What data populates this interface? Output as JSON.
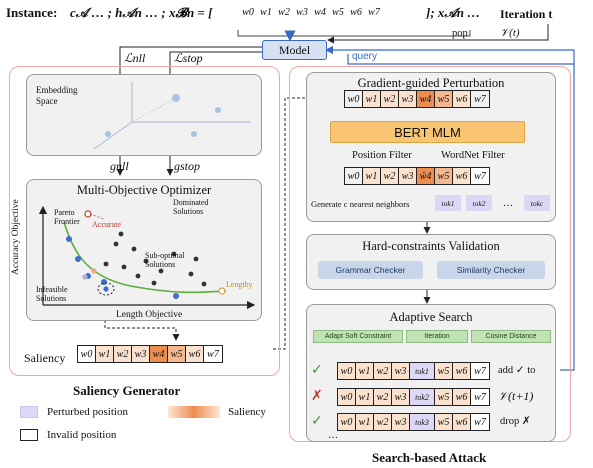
{
  "header": {
    "instance_label": "Instance:",
    "instance_formula": "c𝒜 … ; h𝒜n … ; x𝓑n = [",
    "instance_suffix": "]; x𝒜n …",
    "iteration_label": "Iteration t",
    "pop_label": "pop",
    "v_label": "𝒱(t)",
    "query_label": "query"
  },
  "model": {
    "label": "Model"
  },
  "losses": {
    "nll": "ℒnll",
    "stop": "ℒstop",
    "g_nll": "gnll",
    "g_stop": "gstop"
  },
  "embedding": {
    "label_line1": "Embedding",
    "label_line2": "Space"
  },
  "optimizer": {
    "title": "Multi-Objective Optimizer",
    "y_axis": "Accuracy Objective",
    "x_axis": "Length Objective",
    "pareto_line1": "Pareto",
    "pareto_line2": "Frontier",
    "accurate": "Accurate",
    "dominated_line1": "Dominated",
    "dominated_line2": "Solutions",
    "suboptimal_line1": "Sub-optimal",
    "suboptimal_line2": "Solutions",
    "infeasible_line1": "Infeasible",
    "infeasible_line2": "Solutions",
    "lengthy": "Lengthy"
  },
  "saliency": {
    "label": "Saliency"
  },
  "saliency_generator_title": "Saliency Generator",
  "perturbation": {
    "title": "Gradient-guided Perturbation",
    "bert": "BERT MLM",
    "position_filter": "Position Filter",
    "wordnet_filter": "WordNet Filter",
    "neighbors": "Generate c nearest neighbors",
    "tok1": "tok1",
    "tok2": "tok2",
    "tokc": "tokc",
    "dots": "…"
  },
  "validation": {
    "title": "Hard-constraints Validation",
    "grammar": "Grammar Checker",
    "similarity": "Similarity Checker"
  },
  "adaptive": {
    "title": "Adaptive Search",
    "tag1": "Adapt Soft Constraint",
    "tag2": "Iteration",
    "tag3": "Cosine Distance",
    "row1_action": "add ✓ to",
    "row2_action": "𝒱(t+1)",
    "row3_action": "drop ✗",
    "row1_tok": "tok1",
    "row2_tok": "tok2",
    "row3_tok": "tok3",
    "ellipsis": "…"
  },
  "search_attack_title": "Search-based Attack",
  "legend": {
    "perturbed": "Perturbed position",
    "saliency": "Saliency",
    "invalid": "Invalid position"
  },
  "tokens": [
    "w0",
    "w1",
    "w2",
    "w3",
    "w4",
    "w5",
    "w6",
    "w7"
  ],
  "tokens_hat4": "ŵ4",
  "colors": {
    "orange_dark": "#ec8d4f",
    "orange_mid": "#f5b88e",
    "orange_light": "#fbe2cf",
    "purple": "#ded6f5",
    "blue_line": "#3a6bc4",
    "green_curve": "#5cae3b",
    "panel_border_pink": "#f0a7a7",
    "model_fill": "#d6e2f3"
  }
}
